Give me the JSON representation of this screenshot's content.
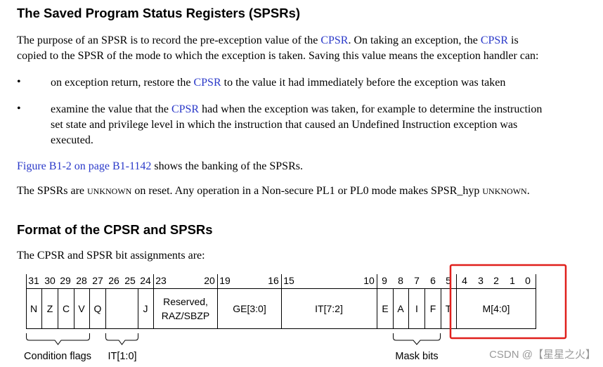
{
  "section1": {
    "title": "The Saved Program Status Registers (SPSRs)",
    "intro": {
      "a": "The purpose of an SPSR is to record the pre-exception value of the ",
      "cpsr1": "CPSR",
      "b": ". On taking an exception, the ",
      "cpsr2": "CPSR",
      "c": " is",
      "line2": "copied to the SPSR of the mode to which the exception is taken. Saving this value means the exception handler can:"
    },
    "bullet_char": "•",
    "bullet1": {
      "a": "on exception return, restore the ",
      "cpsr": "CPSR",
      "b": " to the value it had immediately before the exception was taken"
    },
    "bullet2": {
      "a": "examine the value that the ",
      "cpsr": "CPSR",
      "b": " had when the exception was taken, for example to determine the instruction",
      "line2": "set state and privilege level in which the instruction that caused an Undefined Instruction exception was",
      "line3": "executed."
    },
    "figure_ref": {
      "link": "Figure B1-2 on page B1-1142",
      "rest": " shows the banking of the SPSRs."
    },
    "reset": {
      "a": "The SPSRs are ",
      "unknown1": "UNKNOWN",
      "b": " on reset. Any operation in a Non-secure PL1 or PL0 mode makes SPSR_hyp ",
      "unknown2": "UNKNOWN",
      "c": "."
    }
  },
  "section2": {
    "title": "Format of the CPSR and SPSRs",
    "intro": "The CPSR and SPSR bit assignments are:"
  },
  "diagram": {
    "bit_numbers": {
      "b31": "31",
      "b30": "30",
      "b29": "29",
      "b28": "28",
      "b27": "27",
      "b26": "26",
      "b25": "25",
      "b24": "24",
      "b23": "23",
      "b20": "20",
      "b19": "19",
      "b16": "16",
      "b15": "15",
      "b10": "10",
      "b9": "9",
      "b8": "8",
      "b7": "7",
      "b6": "6",
      "b5": "5",
      "b4": "4",
      "b3": "3",
      "b2": "2",
      "b1": "1",
      "b0": "0"
    },
    "fields": {
      "n": "N",
      "z": "Z",
      "c": "C",
      "v": "V",
      "q": "Q",
      "j": "J",
      "reserved1": "Reserved,",
      "reserved2": "RAZ/SBZP",
      "ge": "GE[3:0]",
      "it72": "IT[7:2]",
      "e": "E",
      "a": "A",
      "i": "I",
      "f": "F",
      "t": "T",
      "m": "M[4:0]"
    },
    "brackets": {
      "condition": "Condition flags",
      "it10": "IT[1:0]",
      "mask": "Mask bits"
    },
    "highlight_color": "#e0201c"
  },
  "watermark": "CSDN @【星星之火】"
}
